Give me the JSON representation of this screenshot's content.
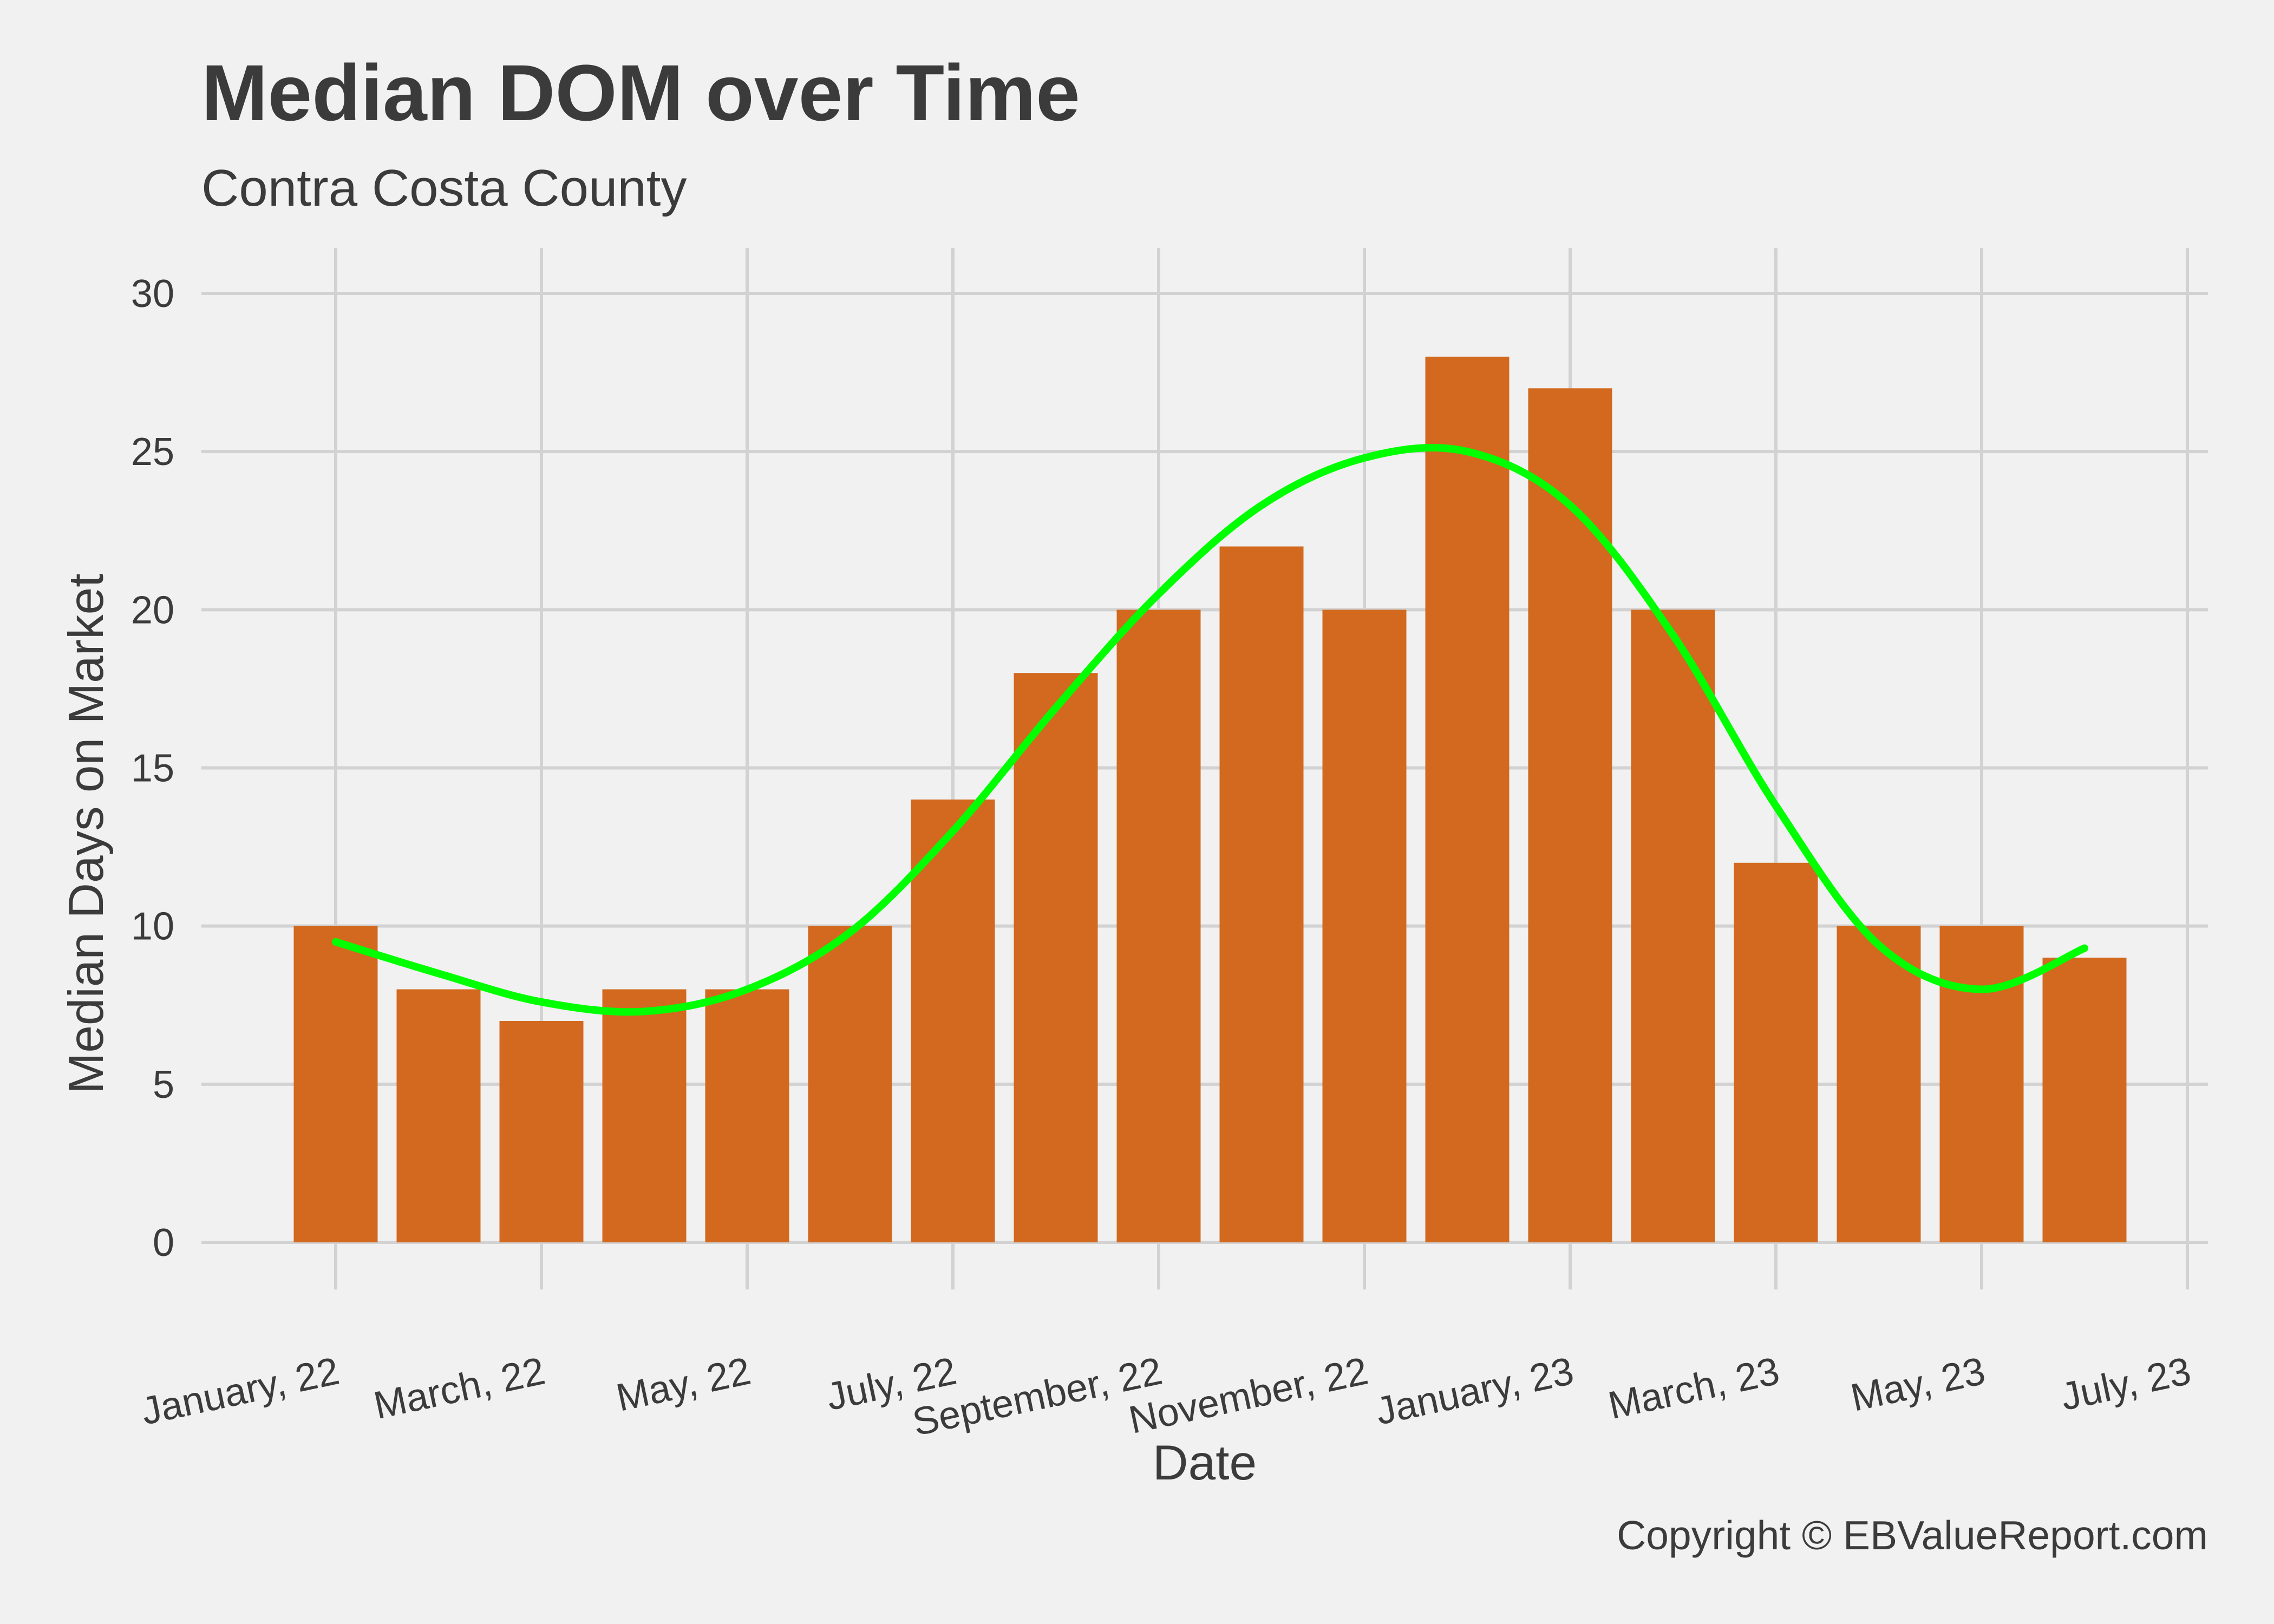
{
  "colors": {
    "background": "#f1f1f1",
    "bar": "#d2691e",
    "trend": "#00ff00",
    "grid": "#d2d2d2",
    "text": "#3b3b3b"
  },
  "caption": "Copyright  © EBValueReport.com",
  "chart_data": {
    "type": "bar",
    "title": "Median DOM over Time",
    "subtitle": "Contra Costa County",
    "xlabel": "Date",
    "ylabel": "Median Days on Market",
    "ylim": [
      0,
      30
    ],
    "yticks": [
      0,
      5,
      10,
      15,
      20,
      25,
      30
    ],
    "xticks": [
      "January, 22",
      "March, 22",
      "May, 22",
      "July, 22",
      "September, 22",
      "November, 22",
      "January, 23",
      "March, 23",
      "May, 23",
      "July, 23"
    ],
    "categories": [
      "2022-01",
      "2022-02",
      "2022-03",
      "2022-04",
      "2022-05",
      "2022-06",
      "2022-07",
      "2022-08",
      "2022-09",
      "2022-10",
      "2022-11",
      "2022-12",
      "2023-01",
      "2023-02",
      "2023-03",
      "2023-04",
      "2023-05",
      "2023-06"
    ],
    "values": [
      10,
      8,
      7,
      8,
      8,
      10,
      14,
      18,
      20,
      22,
      20,
      28,
      27,
      20,
      12,
      10,
      10,
      9
    ],
    "trend": {
      "type": "smooth",
      "values": [
        9.5,
        8.5,
        7.6,
        7.3,
        8.0,
        9.8,
        13.0,
        16.9,
        20.5,
        23.3,
        24.8,
        25.0,
        23.3,
        19.2,
        13.8,
        9.4,
        8.0,
        9.3
      ]
    },
    "grid": true,
    "legend": "none"
  }
}
